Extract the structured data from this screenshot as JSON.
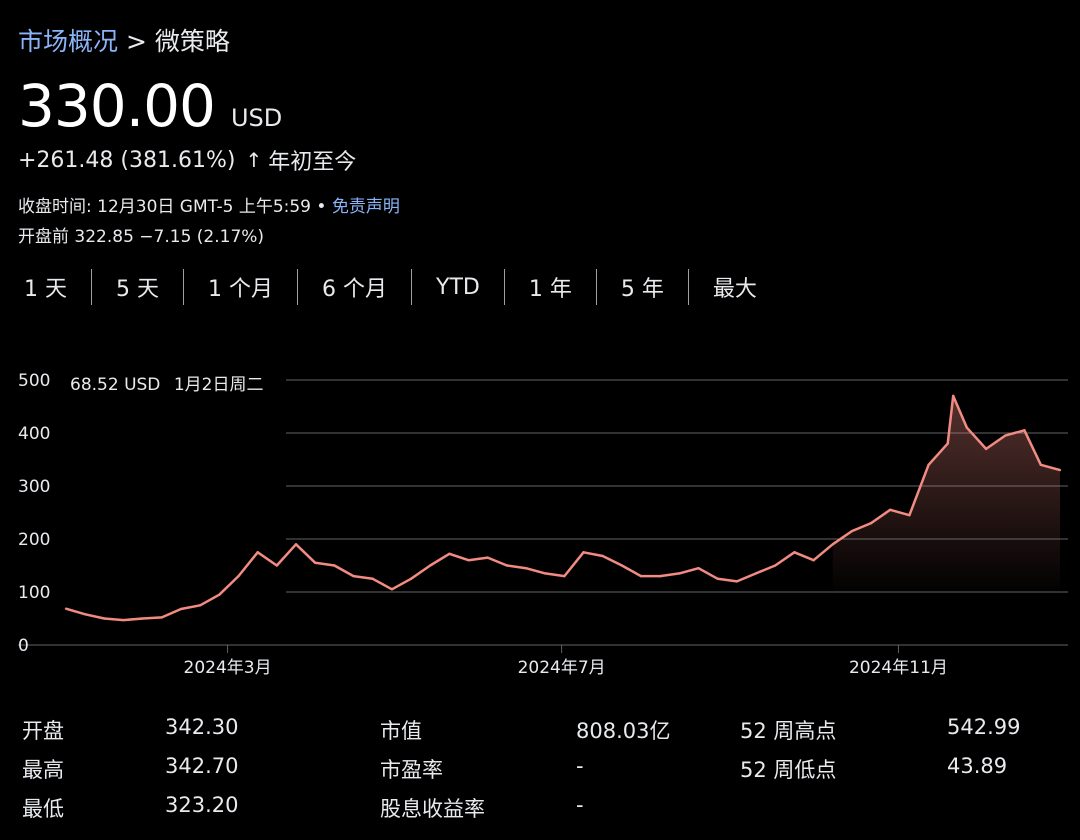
{
  "breadcrumb": {
    "parent": "市场概况",
    "separator": ">",
    "current": "微策略"
  },
  "quote": {
    "price": "330.00",
    "currency": "USD",
    "change": "+261.48 (381.61%)",
    "arrow": "↑",
    "period": "年初至今",
    "close_time": "收盘时间: 12月30日 GMT-5 上午5:59 •",
    "disclaimer": "免责声明",
    "premarket": "开盘前 322.85 −7.15 (2.17%)"
  },
  "ranges": [
    "1 天",
    "5 天",
    "1 个月",
    "6 个月",
    "YTD",
    "1 年",
    "5 年",
    "最大"
  ],
  "tooltip": {
    "value": "68.52 USD",
    "date": "1月2日周二"
  },
  "stats": [
    {
      "label": "开盘",
      "value": "342.30"
    },
    {
      "label": "最高",
      "value": "342.70"
    },
    {
      "label": "最低",
      "value": "323.20"
    },
    {
      "label": "市值",
      "value": "808.03亿"
    },
    {
      "label": "市盈率",
      "value": "-"
    },
    {
      "label": "股息收益率",
      "value": "-"
    },
    {
      "label": "52 周高点",
      "value": "542.99"
    },
    {
      "label": "52 周低点",
      "value": "43.89"
    }
  ],
  "colors": {
    "line": "#f28b82",
    "link": "#8ab4f8",
    "grid": "#5f6368",
    "background": "#000000"
  },
  "chart_data": {
    "type": "line",
    "ylim": [
      0,
      500
    ],
    "yticks": [
      "500",
      "400",
      "300",
      "200",
      "100",
      "0"
    ],
    "xticks": [
      "2024年3月",
      "2024年7月",
      "2024年11月"
    ],
    "x": [
      "2024-01-02",
      "2024-01-09",
      "2024-01-16",
      "2024-01-23",
      "2024-01-30",
      "2024-02-06",
      "2024-02-13",
      "2024-02-20",
      "2024-02-27",
      "2024-03-05",
      "2024-03-12",
      "2024-03-19",
      "2024-03-26",
      "2024-04-02",
      "2024-04-09",
      "2024-04-16",
      "2024-04-23",
      "2024-04-30",
      "2024-05-07",
      "2024-05-14",
      "2024-05-21",
      "2024-05-28",
      "2024-06-04",
      "2024-06-11",
      "2024-06-18",
      "2024-06-25",
      "2024-07-02",
      "2024-07-09",
      "2024-07-16",
      "2024-07-23",
      "2024-07-30",
      "2024-08-06",
      "2024-08-13",
      "2024-08-20",
      "2024-08-27",
      "2024-09-03",
      "2024-09-10",
      "2024-09-17",
      "2024-09-24",
      "2024-10-01",
      "2024-10-08",
      "2024-10-15",
      "2024-10-22",
      "2024-10-29",
      "2024-11-05",
      "2024-11-12",
      "2024-11-19",
      "2024-11-21",
      "2024-11-26",
      "2024-12-03",
      "2024-12-10",
      "2024-12-17",
      "2024-12-23",
      "2024-12-30"
    ],
    "series": [
      {
        "values": [
          68.52,
          58,
          50,
          47,
          50,
          52,
          68,
          75,
          95,
          130,
          175,
          150,
          190,
          155,
          150,
          130,
          125,
          105,
          125,
          150,
          172,
          160,
          165,
          150,
          145,
          135,
          130,
          175,
          168,
          150,
          130,
          130,
          135,
          145,
          125,
          120,
          135,
          150,
          175,
          160,
          190,
          215,
          230,
          255,
          245,
          340,
          380,
          470,
          410,
          370,
          395,
          405,
          340,
          330
        ]
      }
    ]
  }
}
